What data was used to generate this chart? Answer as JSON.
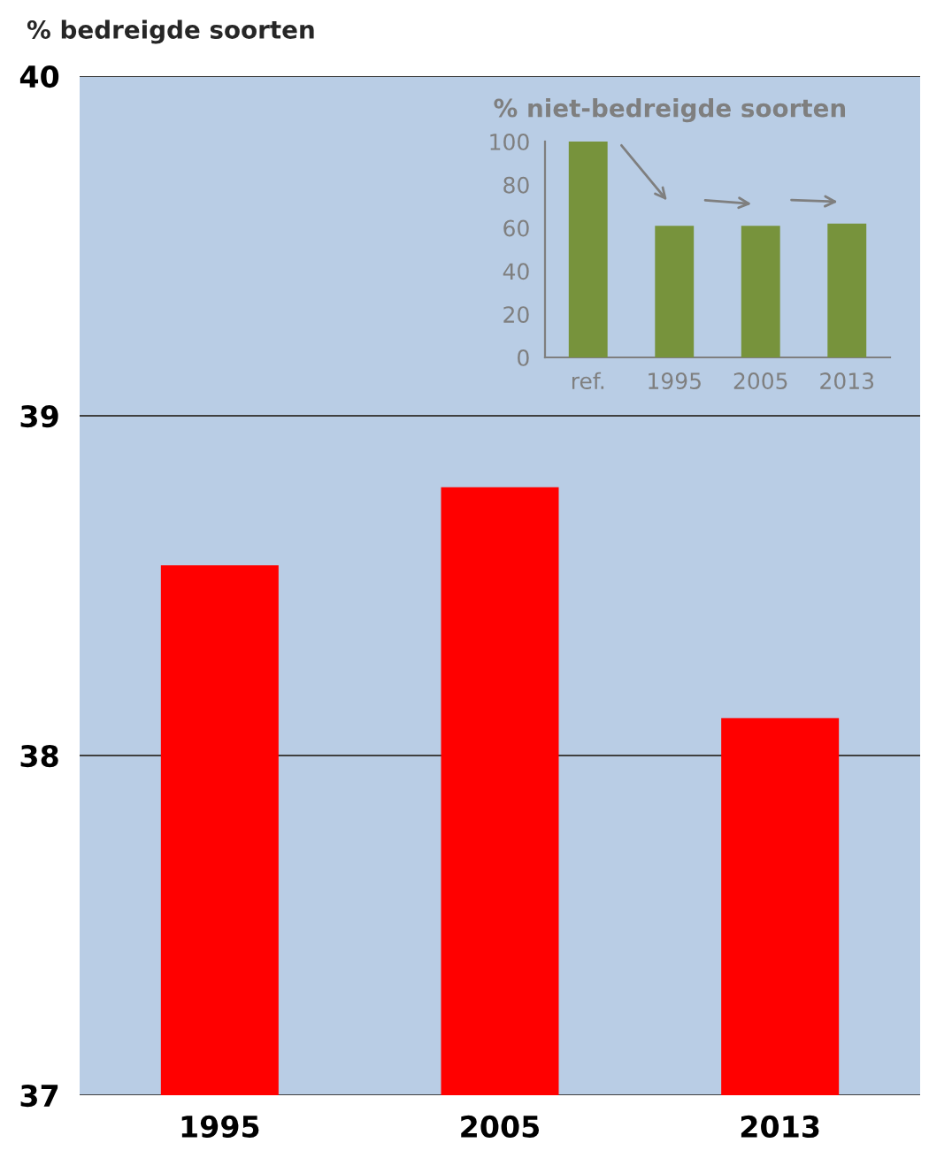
{
  "chart_data": [
    {
      "type": "bar",
      "ylabel": "% bedreigde soorten",
      "categories": [
        "1995",
        "2005",
        "2013"
      ],
      "values": [
        38.56,
        38.79,
        38.11
      ],
      "color": "#ff0000",
      "ylim": [
        37,
        40
      ],
      "yticks": [
        37,
        38,
        39,
        40
      ],
      "grid": "y"
    },
    {
      "type": "bar",
      "title": "% niet-bedreigde soorten",
      "categories": [
        "ref.",
        "1995",
        "2005",
        "2013"
      ],
      "values": [
        100,
        61,
        61,
        62
      ],
      "color": "#77933c",
      "ylim": [
        0,
        100
      ],
      "yticks": [
        0,
        20,
        40,
        60,
        80,
        100
      ],
      "grid": false
    }
  ]
}
